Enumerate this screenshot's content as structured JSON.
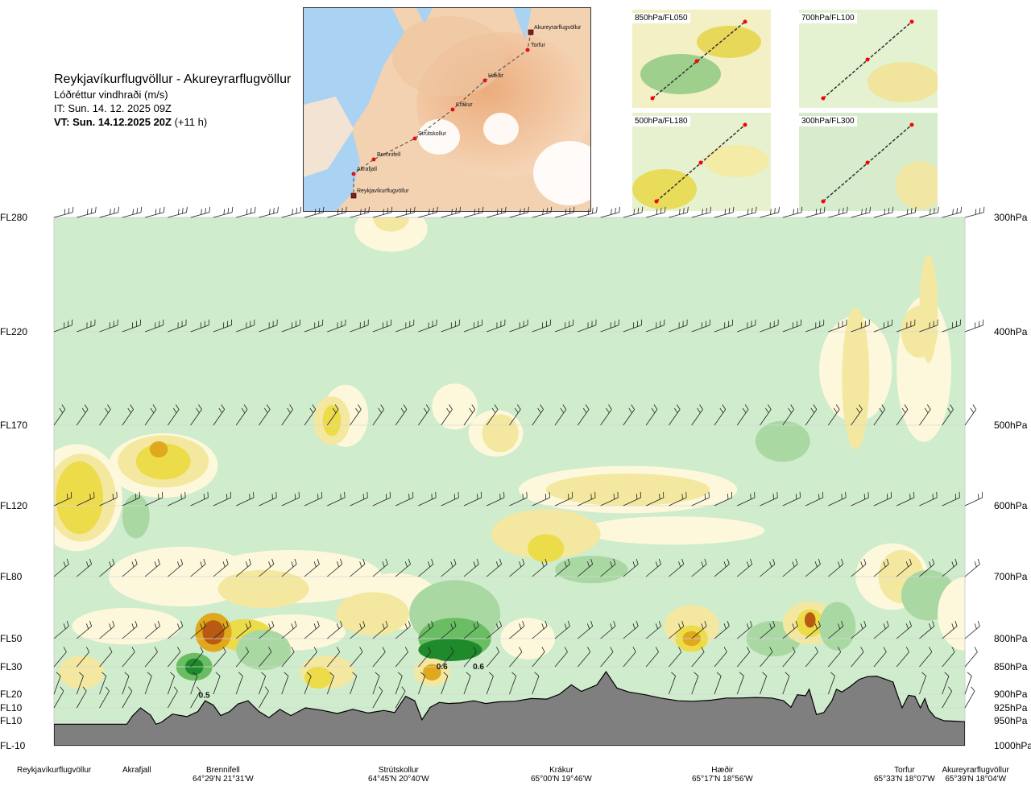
{
  "header": {
    "title": "Reykjavíkurflugvöllur - Akureyrarflugvöllur",
    "subtitle": "Lóðréttur vindhraði (m/s)",
    "issue_time": "IT: Sun. 14. 12. 2025 09Z",
    "valid_time": "VT: Sun. 14.12.2025 20Z",
    "valid_offset": "(+11 h)"
  },
  "map": {
    "stations": [
      {
        "name": "Akureyrarflugvöllur",
        "marker": "square"
      },
      {
        "name": "Torfur",
        "marker": "circle"
      },
      {
        "name": "Hæðir",
        "marker": "circle"
      },
      {
        "name": "Krákur",
        "marker": "circle"
      },
      {
        "name": "Strútskollur",
        "marker": "circle"
      },
      {
        "name": "Brennifell",
        "marker": "circle"
      },
      {
        "name": "Akrafjall",
        "marker": "circle"
      },
      {
        "name": "Reykjavíkurflugvöllur",
        "marker": "square"
      }
    ]
  },
  "mini_maps": [
    {
      "label": "850hPa/FL050"
    },
    {
      "label": "700hPa/FL100"
    },
    {
      "label": "500hPa/FL180"
    },
    {
      "label": "300hPa/FL300"
    }
  ],
  "chart_data": {
    "type": "heatmap",
    "subtitle": "Lóðréttur vindhraði (m/s)",
    "x_domain": [
      0,
      100
    ],
    "flight_levels": [
      {
        "label": "FL280",
        "pressure": 300,
        "pressure_label": "300hPa"
      },
      {
        "label": "FL220",
        "pressure": 400,
        "pressure_label": "400hPa"
      },
      {
        "label": "FL170",
        "pressure": 500,
        "pressure_label": "500hPa"
      },
      {
        "label": "FL120",
        "pressure": 600,
        "pressure_label": "600hPa"
      },
      {
        "label": "FL80",
        "pressure": 700,
        "pressure_label": "700hPa"
      },
      {
        "label": "FL50",
        "pressure": 800,
        "pressure_label": "800hPa"
      },
      {
        "label": "FL30",
        "pressure": 850,
        "pressure_label": "850hPa"
      },
      {
        "label": "FL20",
        "pressure": 900,
        "pressure_label": "900hPa"
      },
      {
        "label": "FL10",
        "pressure": 925,
        "pressure_label": "925hPa"
      },
      {
        "label": "FL10",
        "pressure": 950,
        "pressure_label": "950hPa"
      },
      {
        "label": "FL-10",
        "pressure": 1000,
        "pressure_label": "1000hPa"
      }
    ],
    "waypoints": [
      {
        "name": "Reykjavíkurflugvöllur",
        "coord": "",
        "x": 0
      },
      {
        "name": "Akrafjall",
        "coord": "",
        "x": 9.5
      },
      {
        "name": "Brennifell",
        "coord": "64°29'N 21°31'W",
        "x": 19.8
      },
      {
        "name": "Strútskollur",
        "coord": "64°45'N 20°40'W",
        "x": 38.6
      },
      {
        "name": "Krákur",
        "coord": "65°00'N 19°46'W",
        "x": 56.8
      },
      {
        "name": "Hæðir",
        "coord": "65°17'N 18°56'W",
        "x": 75.2
      },
      {
        "name": "Torfur",
        "coord": "65°33'N 18°07'W",
        "x": 93.8
      },
      {
        "name": "Akureyrarflugvöllur",
        "coord": "65°39'N 18°04'W",
        "x": 100
      }
    ],
    "terrain_pressure": [
      [
        0,
        957
      ],
      [
        5,
        957
      ],
      [
        8,
        957
      ],
      [
        8.6,
        941
      ],
      [
        9.5,
        925
      ],
      [
        10.6,
        939
      ],
      [
        11.2,
        957
      ],
      [
        11.8,
        953
      ],
      [
        13,
        937
      ],
      [
        14.6,
        942
      ],
      [
        15.8,
        932
      ],
      [
        16.6,
        912
      ],
      [
        17.5,
        920
      ],
      [
        18.3,
        940
      ],
      [
        19.3,
        932
      ],
      [
        20.2,
        918
      ],
      [
        21.3,
        912
      ],
      [
        22.5,
        932
      ],
      [
        23.6,
        944
      ],
      [
        24.8,
        928
      ],
      [
        26,
        940
      ],
      [
        27.6,
        925
      ],
      [
        29.5,
        930
      ],
      [
        31.1,
        936
      ],
      [
        32.8,
        928
      ],
      [
        34.5,
        935
      ],
      [
        36.2,
        930
      ],
      [
        37.4,
        934
      ],
      [
        38.6,
        904
      ],
      [
        39.6,
        912
      ],
      [
        40.4,
        948
      ],
      [
        41.3,
        924
      ],
      [
        42.3,
        915
      ],
      [
        43.3,
        917
      ],
      [
        44.6,
        916
      ],
      [
        46.1,
        912
      ],
      [
        47.4,
        917
      ],
      [
        48.8,
        914
      ],
      [
        50.6,
        913
      ],
      [
        52.4,
        908
      ],
      [
        54.1,
        909
      ],
      [
        55.5,
        900
      ],
      [
        56.8,
        883
      ],
      [
        57.9,
        895
      ],
      [
        59.6,
        883
      ],
      [
        60.6,
        859
      ],
      [
        61.8,
        889
      ],
      [
        63.1,
        896
      ],
      [
        64.9,
        901
      ],
      [
        66.6,
        907
      ],
      [
        68.5,
        912
      ],
      [
        70.2,
        913
      ],
      [
        72.1,
        911
      ],
      [
        73.8,
        907
      ],
      [
        75.2,
        907
      ],
      [
        77.1,
        906
      ],
      [
        78.8,
        907
      ],
      [
        80.1,
        912
      ],
      [
        80.9,
        924
      ],
      [
        81.6,
        901
      ],
      [
        82.5,
        903
      ],
      [
        82.9,
        891
      ],
      [
        83.7,
        938
      ],
      [
        84.5,
        934
      ],
      [
        85.4,
        912
      ],
      [
        85.9,
        891
      ],
      [
        86.5,
        896
      ],
      [
        87.4,
        886
      ],
      [
        88.4,
        873
      ],
      [
        89.3,
        868
      ],
      [
        90.3,
        867
      ],
      [
        91.3,
        873
      ],
      [
        92.1,
        878
      ],
      [
        92.6,
        902
      ],
      [
        93.1,
        925
      ],
      [
        93.8,
        902
      ],
      [
        94.5,
        904
      ],
      [
        95.1,
        925
      ],
      [
        95.6,
        908
      ],
      [
        96,
        928
      ],
      [
        96.7,
        943
      ],
      [
        97.7,
        950
      ],
      [
        99,
        951
      ],
      [
        100,
        952
      ]
    ],
    "contour_labels": [
      "0.6",
      "0.6",
      "0.5"
    ],
    "legend": "none",
    "grid": "horizontal lines at pressure levels",
    "colors": {
      "weak_down": "#cfeccc",
      "mid_down": "#a9d8a3",
      "strong_down": "#6bbd64",
      "very_strong_down": "#1f8a2c",
      "neutral": "#fdf8dc",
      "weak_up": "#f4e8a0",
      "mid_up": "#ecdc4a",
      "strong_up": "#e0a81c",
      "very_strong_up": "#b85a12",
      "terrain": "#7f7f7f"
    }
  }
}
